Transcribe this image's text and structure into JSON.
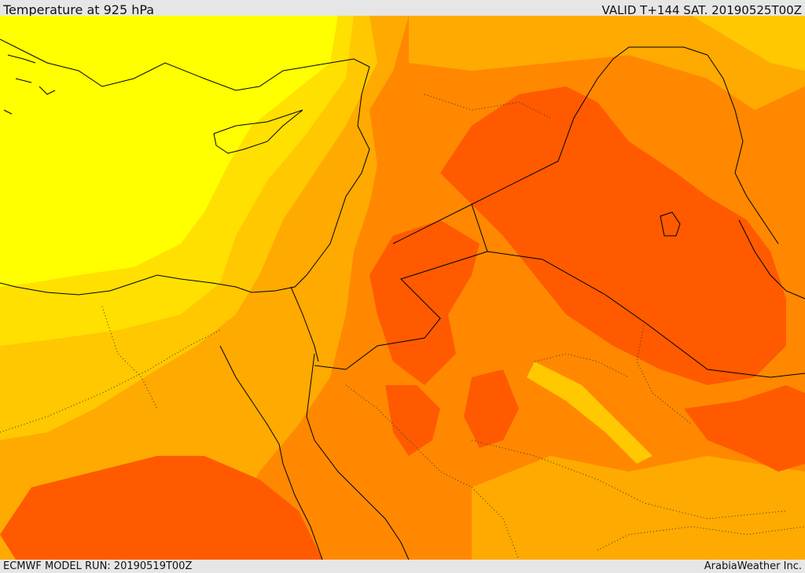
{
  "header": {
    "title": "Temperature at 925 hPa",
    "valid_time": "VALID T+144 SAT. 20190525T00Z"
  },
  "footer": {
    "model_run": "ECMWF MODEL RUN: 20190519T00Z",
    "credit": "ArabiaWeather Inc."
  },
  "map": {
    "region": "Eastern Mediterranean / Levant / Arabian Peninsula",
    "variable": "temperature",
    "level_hpa": 925,
    "colors": {
      "bright_yellow": "#ffff00",
      "yellow": "#ffe000",
      "light_orange": "#ffc800",
      "orange": "#ffaa00",
      "dark_orange": "#ff8800",
      "red_orange": "#ff5a00",
      "coastline": "#000000",
      "border_dotted": "#333333"
    }
  }
}
